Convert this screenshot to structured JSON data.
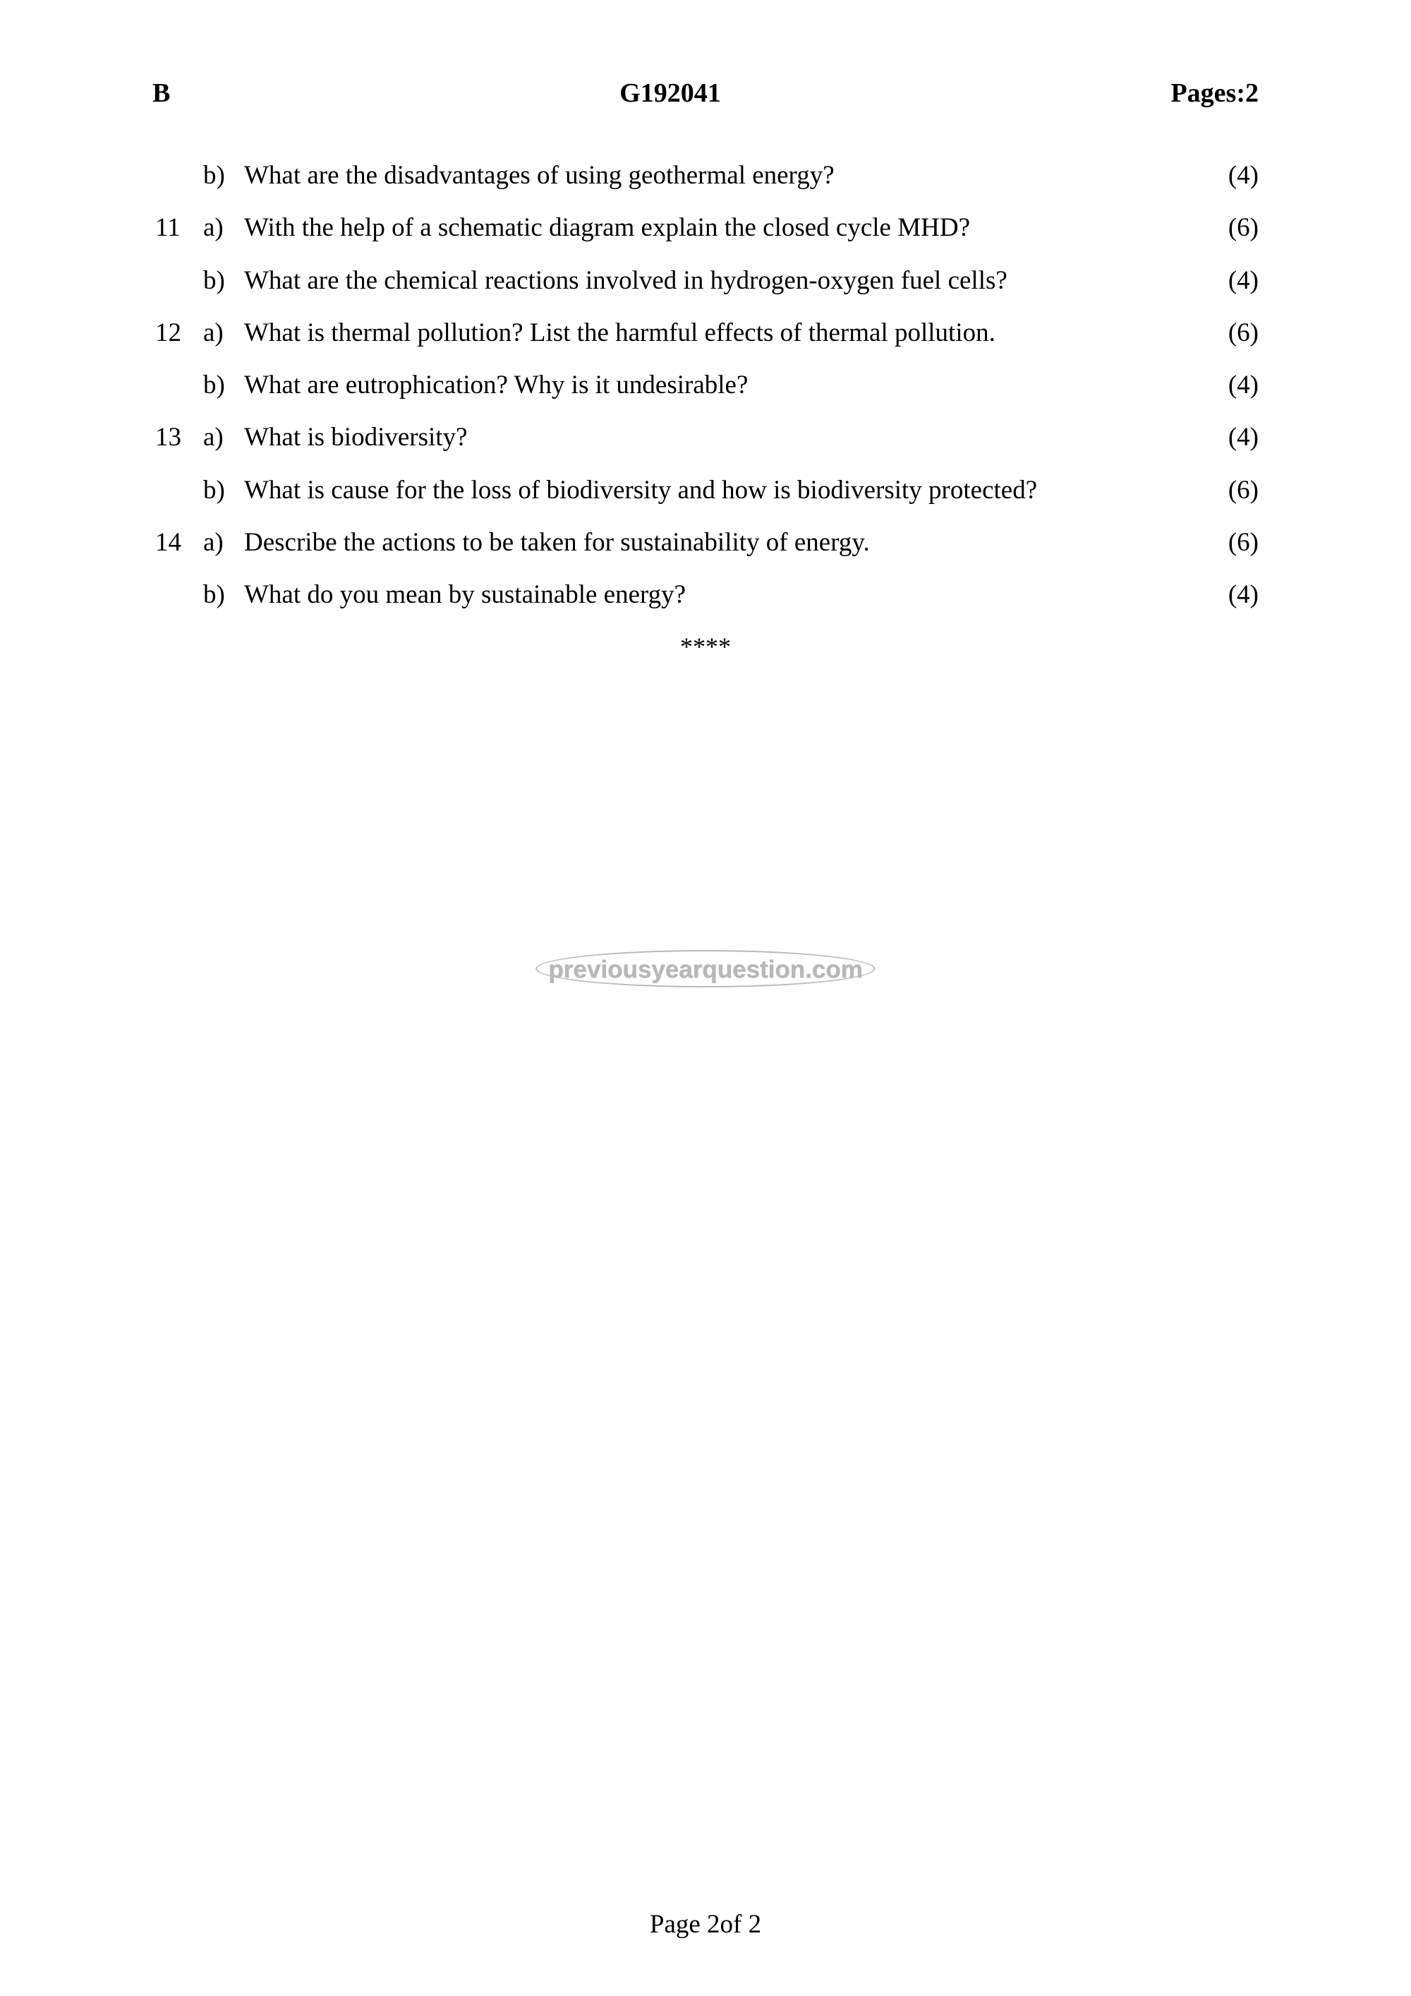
{
  "header": {
    "left": "B",
    "center": "G192041",
    "right": "Pages:2"
  },
  "questions": [
    {
      "num": "",
      "part": "b)",
      "text": "What are the disadvantages of using geothermal energy?",
      "marks": "(4)"
    },
    {
      "num": "11",
      "part": "a)",
      "text": "With the help of a schematic diagram explain the closed cycle MHD?",
      "marks": "(6)"
    },
    {
      "num": "",
      "part": "b)",
      "text": "What are the chemical reactions involved in hydrogen-oxygen fuel cells?",
      "marks": "(4)"
    },
    {
      "num": "12",
      "part": "a)",
      "text": "What is thermal pollution? List the harmful effects of thermal pollution.",
      "marks": "(6)"
    },
    {
      "num": "",
      "part": "b)",
      "text": "What are eutrophication? Why is it undesirable?",
      "marks": "(4)"
    },
    {
      "num": "13",
      "part": "a)",
      "text": "What is biodiversity?",
      "marks": "(4)"
    },
    {
      "num": "",
      "part": "b)",
      "text": "What is cause for the loss of biodiversity and how is biodiversity protected?",
      "marks": "(6)"
    },
    {
      "num": "14",
      "part": "a)",
      "text": "Describe the actions to be taken for sustainability of  energy.",
      "marks": "(6)"
    },
    {
      "num": "",
      "part": "b)",
      "text": "What do you mean by sustainable energy?",
      "marks": "(4)"
    }
  ],
  "separator": "****",
  "watermark": "previousyearquestion.com",
  "footer": "Page 2of 2",
  "colors": {
    "text": "#000000",
    "background": "#ffffff",
    "watermark": "#b8b8b8"
  },
  "fontsize": {
    "header": 38,
    "body": 37,
    "watermark": 35,
    "footer": 37
  }
}
